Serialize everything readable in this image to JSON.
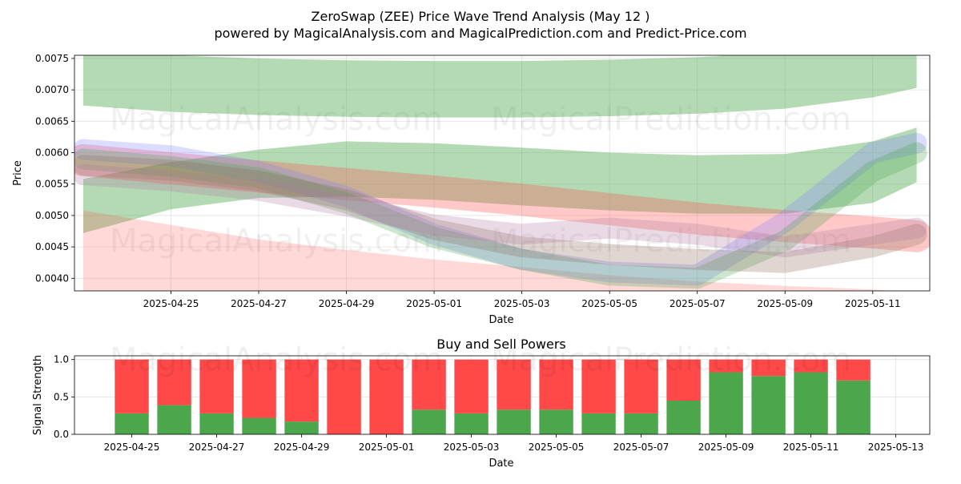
{
  "header": {
    "title": "ZeroSwap (ZEE) Price Wave Trend Analysis (May 12 )",
    "subtitle": "powered by MagicalAnalysis.com and MagicalPrediction.com and Predict-Price.com"
  },
  "watermarks": [
    "MagicalAnalysis.com",
    "MagicalPrediction.com"
  ],
  "colors": {
    "green_band": "#4ca64c",
    "red_band": "#ff4d4d",
    "blue_band": "#8080ff",
    "buy": "#4ca64c",
    "sell": "#ff4848"
  },
  "chart_data": [
    {
      "type": "area",
      "title": "",
      "xlabel": "Date",
      "ylabel": "Price",
      "xlim": [
        "2025-04-23",
        "2025-05-12"
      ],
      "ylim": [
        0.0038,
        0.00755
      ],
      "grid": true,
      "x_ticks": [
        "2025-04-25",
        "2025-04-27",
        "2025-04-29",
        "2025-05-01",
        "2025-05-03",
        "2025-05-05",
        "2025-05-07",
        "2025-05-09",
        "2025-05-11"
      ],
      "y_ticks": [
        "0.0040",
        "0.0045",
        "0.0050",
        "0.0055",
        "0.0060",
        "0.0065",
        "0.0070",
        "0.0075"
      ],
      "x": [
        "2025-04-23",
        "2025-04-25",
        "2025-04-27",
        "2025-04-29",
        "2025-05-01",
        "2025-05-03",
        "2025-05-05",
        "2025-05-07",
        "2025-05-09",
        "2025-05-11",
        "2025-05-12"
      ],
      "series": [
        {
          "color": "#4ca64c",
          "lower": [
            0.00675,
            0.00665,
            0.0066,
            0.00657,
            0.00656,
            0.00656,
            0.00658,
            0.00662,
            0.0067,
            0.00688,
            0.00703
          ],
          "upper": [
            0.0076,
            0.00755,
            0.0075,
            0.00747,
            0.00746,
            0.00746,
            0.00748,
            0.00752,
            0.0076,
            0.00768,
            0.00768
          ]
        },
        {
          "color": "#4ca64c",
          "lower": [
            0.00472,
            0.0051,
            0.00528,
            0.0053,
            0.00525,
            0.00516,
            0.00508,
            0.00503,
            0.00503,
            0.0052,
            0.00553
          ],
          "upper": [
            0.00558,
            0.00585,
            0.00605,
            0.00618,
            0.00615,
            0.00608,
            0.006,
            0.00596,
            0.00598,
            0.00618,
            0.0064
          ]
        },
        {
          "color": "#ff4d4d",
          "lower": [
            0.00508,
            0.00485,
            0.00462,
            0.00445,
            0.0043,
            0.00418,
            0.00405,
            0.00395,
            0.00388,
            0.00382,
            0.00378
          ]
        },
        {
          "color": "#ff4d4d",
          "upper": [
            0.00588,
            0.00575,
            0.00562,
            0.0055,
            0.00538,
            0.00525,
            0.0051,
            0.00495,
            0.00483,
            0.00473,
            0.00467
          ]
        },
        {
          "color": "#8080ff",
          "center": [
            0.00605,
            0.00595,
            0.0057,
            0.0053,
            0.0047,
            0.0043,
            0.0041,
            0.00405,
            0.0049,
            0.006,
            0.00615
          ]
        },
        {
          "color": "#4ca64c",
          "center": [
            0.0059,
            0.00578,
            0.0056,
            0.0052,
            0.00465,
            0.0043,
            0.00405,
            0.004,
            0.0046,
            0.0057,
            0.006
          ]
        },
        {
          "color": "#8b6a5a",
          "center": [
            0.0058,
            0.00572,
            0.00555,
            0.00525,
            0.00478,
            0.0045,
            0.00438,
            0.0043,
            0.00425,
            0.0045,
            0.0047
          ]
        },
        {
          "color": "#b07aa0",
          "center": [
            0.00565,
            0.00555,
            0.0054,
            0.00515,
            0.00485,
            0.0047,
            0.0048,
            0.0047,
            0.0045,
            0.0047,
            0.0048
          ]
        }
      ]
    },
    {
      "type": "bar",
      "title": "Buy and Sell Powers",
      "xlabel": "Date",
      "ylabel": "Signal Strength",
      "ylim": [
        0,
        1.05
      ],
      "grid": true,
      "x_ticks": [
        "2025-04-25",
        "2025-04-27",
        "2025-04-29",
        "2025-05-01",
        "2025-05-03",
        "2025-05-05",
        "2025-05-07",
        "2025-05-09",
        "2025-05-11",
        "2025-05-13"
      ],
      "y_ticks": [
        "0.0",
        "0.5",
        "1.0"
      ],
      "categories": [
        "2025-04-25",
        "2025-04-26",
        "2025-04-27",
        "2025-04-28",
        "2025-04-29",
        "2025-04-30",
        "2025-05-01",
        "2025-05-02",
        "2025-05-03",
        "2025-05-04",
        "2025-05-05",
        "2025-05-06",
        "2025-05-07",
        "2025-05-08",
        "2025-05-09",
        "2025-05-10",
        "2025-05-11",
        "2025-05-12"
      ],
      "series": [
        {
          "values": [
            0.28,
            0.39,
            0.28,
            0.22,
            0.17,
            0.0,
            0.0,
            0.33,
            0.28,
            0.33,
            0.33,
            0.28,
            0.28,
            0.45,
            0.83,
            0.78,
            0.83,
            0.72
          ]
        },
        {
          "values": [
            0.72,
            0.61,
            0.72,
            0.78,
            0.83,
            1.0,
            1.0,
            0.67,
            0.72,
            0.67,
            0.67,
            0.72,
            0.72,
            0.55,
            0.17,
            0.22,
            0.17,
            0.28
          ]
        }
      ]
    }
  ]
}
